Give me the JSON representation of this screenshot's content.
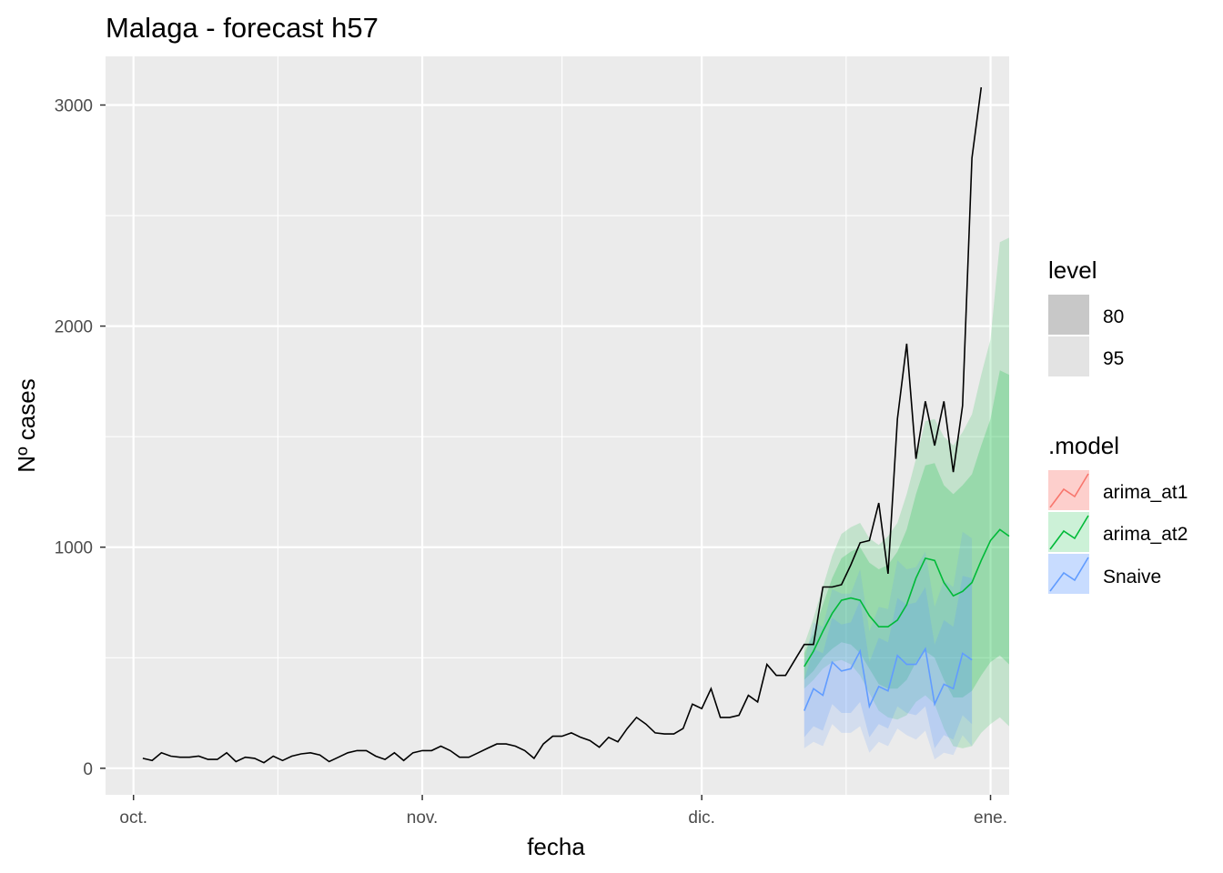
{
  "chart_data": {
    "type": "line",
    "title": "Malaga - forecast h57",
    "xlabel": "fecha",
    "ylabel": "Nº cases",
    "x_ticks": [
      {
        "date": "2020-10-01",
        "label": "oct."
      },
      {
        "date": "2020-11-01",
        "label": "nov."
      },
      {
        "date": "2020-12-01",
        "label": "dic."
      },
      {
        "date": "2021-01-01",
        "label": "ene."
      }
    ],
    "xlim": [
      "2020-09-28",
      "2021-01-03"
    ],
    "y_ticks": [
      0,
      1000,
      2000,
      3000
    ],
    "ylim": [
      -120,
      3220
    ],
    "grid": true,
    "legend_position": "right",
    "observed": {
      "start_date": "2020-10-02",
      "values": [
        45,
        35,
        70,
        55,
        50,
        50,
        55,
        40,
        40,
        70,
        30,
        50,
        45,
        25,
        55,
        35,
        55,
        65,
        70,
        60,
        30,
        50,
        70,
        80,
        80,
        55,
        40,
        70,
        35,
        70,
        80,
        80,
        100,
        80,
        50,
        50,
        70,
        90,
        110,
        110,
        100,
        80,
        45,
        110,
        145,
        145,
        160,
        140,
        125,
        95,
        140,
        120,
        180,
        230,
        200,
        160,
        155,
        155,
        180,
        290,
        270,
        360,
        230,
        230,
        240,
        330,
        300,
        470,
        420,
        420,
        490,
        560,
        560,
        820,
        820,
        830,
        920,
        1020,
        1030,
        1200,
        880,
        1580,
        1920,
        1400,
        1660,
        1460,
        1660,
        1340,
        1640,
        2760,
        3080
      ]
    },
    "legend_level": {
      "title": "level",
      "entries": [
        {
          "label": "80",
          "color": "#c8c8c8"
        },
        {
          "label": "95",
          "color": "#e3e3e3"
        }
      ]
    },
    "legend_model": {
      "title": ".model",
      "entries": [
        {
          "label": "arima_at1",
          "color": "#F8766D"
        },
        {
          "label": "arima_at2",
          "color": "#00BA38"
        },
        {
          "label": "Snaive",
          "color": "#619CFF"
        }
      ]
    },
    "forecasts": {
      "start_date": "2020-12-12",
      "series": [
        {
          "name": "arima_at2",
          "color": "#00BA38",
          "mean": [
            460,
            530,
            620,
            700,
            760,
            770,
            760,
            690,
            640,
            640,
            670,
            740,
            860,
            950,
            940,
            840,
            780,
            800,
            840,
            940,
            1030,
            1080,
            1050
          ],
          "lo80": [
            400,
            440,
            500,
            540,
            570,
            560,
            520,
            450,
            380,
            360,
            360,
            400,
            480,
            530,
            500,
            400,
            320,
            320,
            350,
            420,
            480,
            510,
            470
          ],
          "hi80": [
            520,
            610,
            740,
            860,
            950,
            980,
            1000,
            930,
            900,
            920,
            980,
            1080,
            1240,
            1370,
            1380,
            1280,
            1240,
            1280,
            1330,
            1460,
            1580,
            1800,
            1780
          ],
          "lo95": [
            360,
            400,
            450,
            480,
            490,
            470,
            420,
            340,
            260,
            230,
            220,
            240,
            300,
            330,
            290,
            180,
            100,
            90,
            100,
            160,
            200,
            230,
            190
          ],
          "hi95": [
            560,
            680,
            820,
            960,
            1060,
            1090,
            1110,
            1040,
            1010,
            1050,
            1110,
            1240,
            1400,
            1570,
            1580,
            1500,
            1460,
            1520,
            1600,
            1780,
            1940,
            2380,
            2400
          ]
        },
        {
          "name": "Snaive",
          "color": "#619CFF",
          "mean": [
            260,
            360,
            330,
            480,
            440,
            450,
            530,
            280,
            370,
            350,
            510,
            470,
            470,
            540,
            290,
            380,
            360,
            520,
            490
          ],
          "lo80": [
            140,
            190,
            170,
            290,
            250,
            250,
            300,
            140,
            200,
            180,
            280,
            250,
            240,
            280,
            90,
            150,
            130,
            240,
            200
          ],
          "hi80": [
            400,
            540,
            520,
            680,
            650,
            660,
            760,
            480,
            590,
            570,
            770,
            740,
            750,
            820,
            560,
            670,
            640,
            870,
            860
          ],
          "lo95": [
            90,
            120,
            100,
            200,
            160,
            160,
            190,
            70,
            120,
            100,
            180,
            150,
            130,
            170,
            40,
            70,
            60,
            150,
            100
          ],
          "hi95": [
            480,
            660,
            640,
            810,
            790,
            790,
            900,
            620,
            730,
            720,
            940,
            900,
            910,
            980,
            730,
            850,
            820,
            1070,
            1040
          ]
        }
      ]
    }
  }
}
